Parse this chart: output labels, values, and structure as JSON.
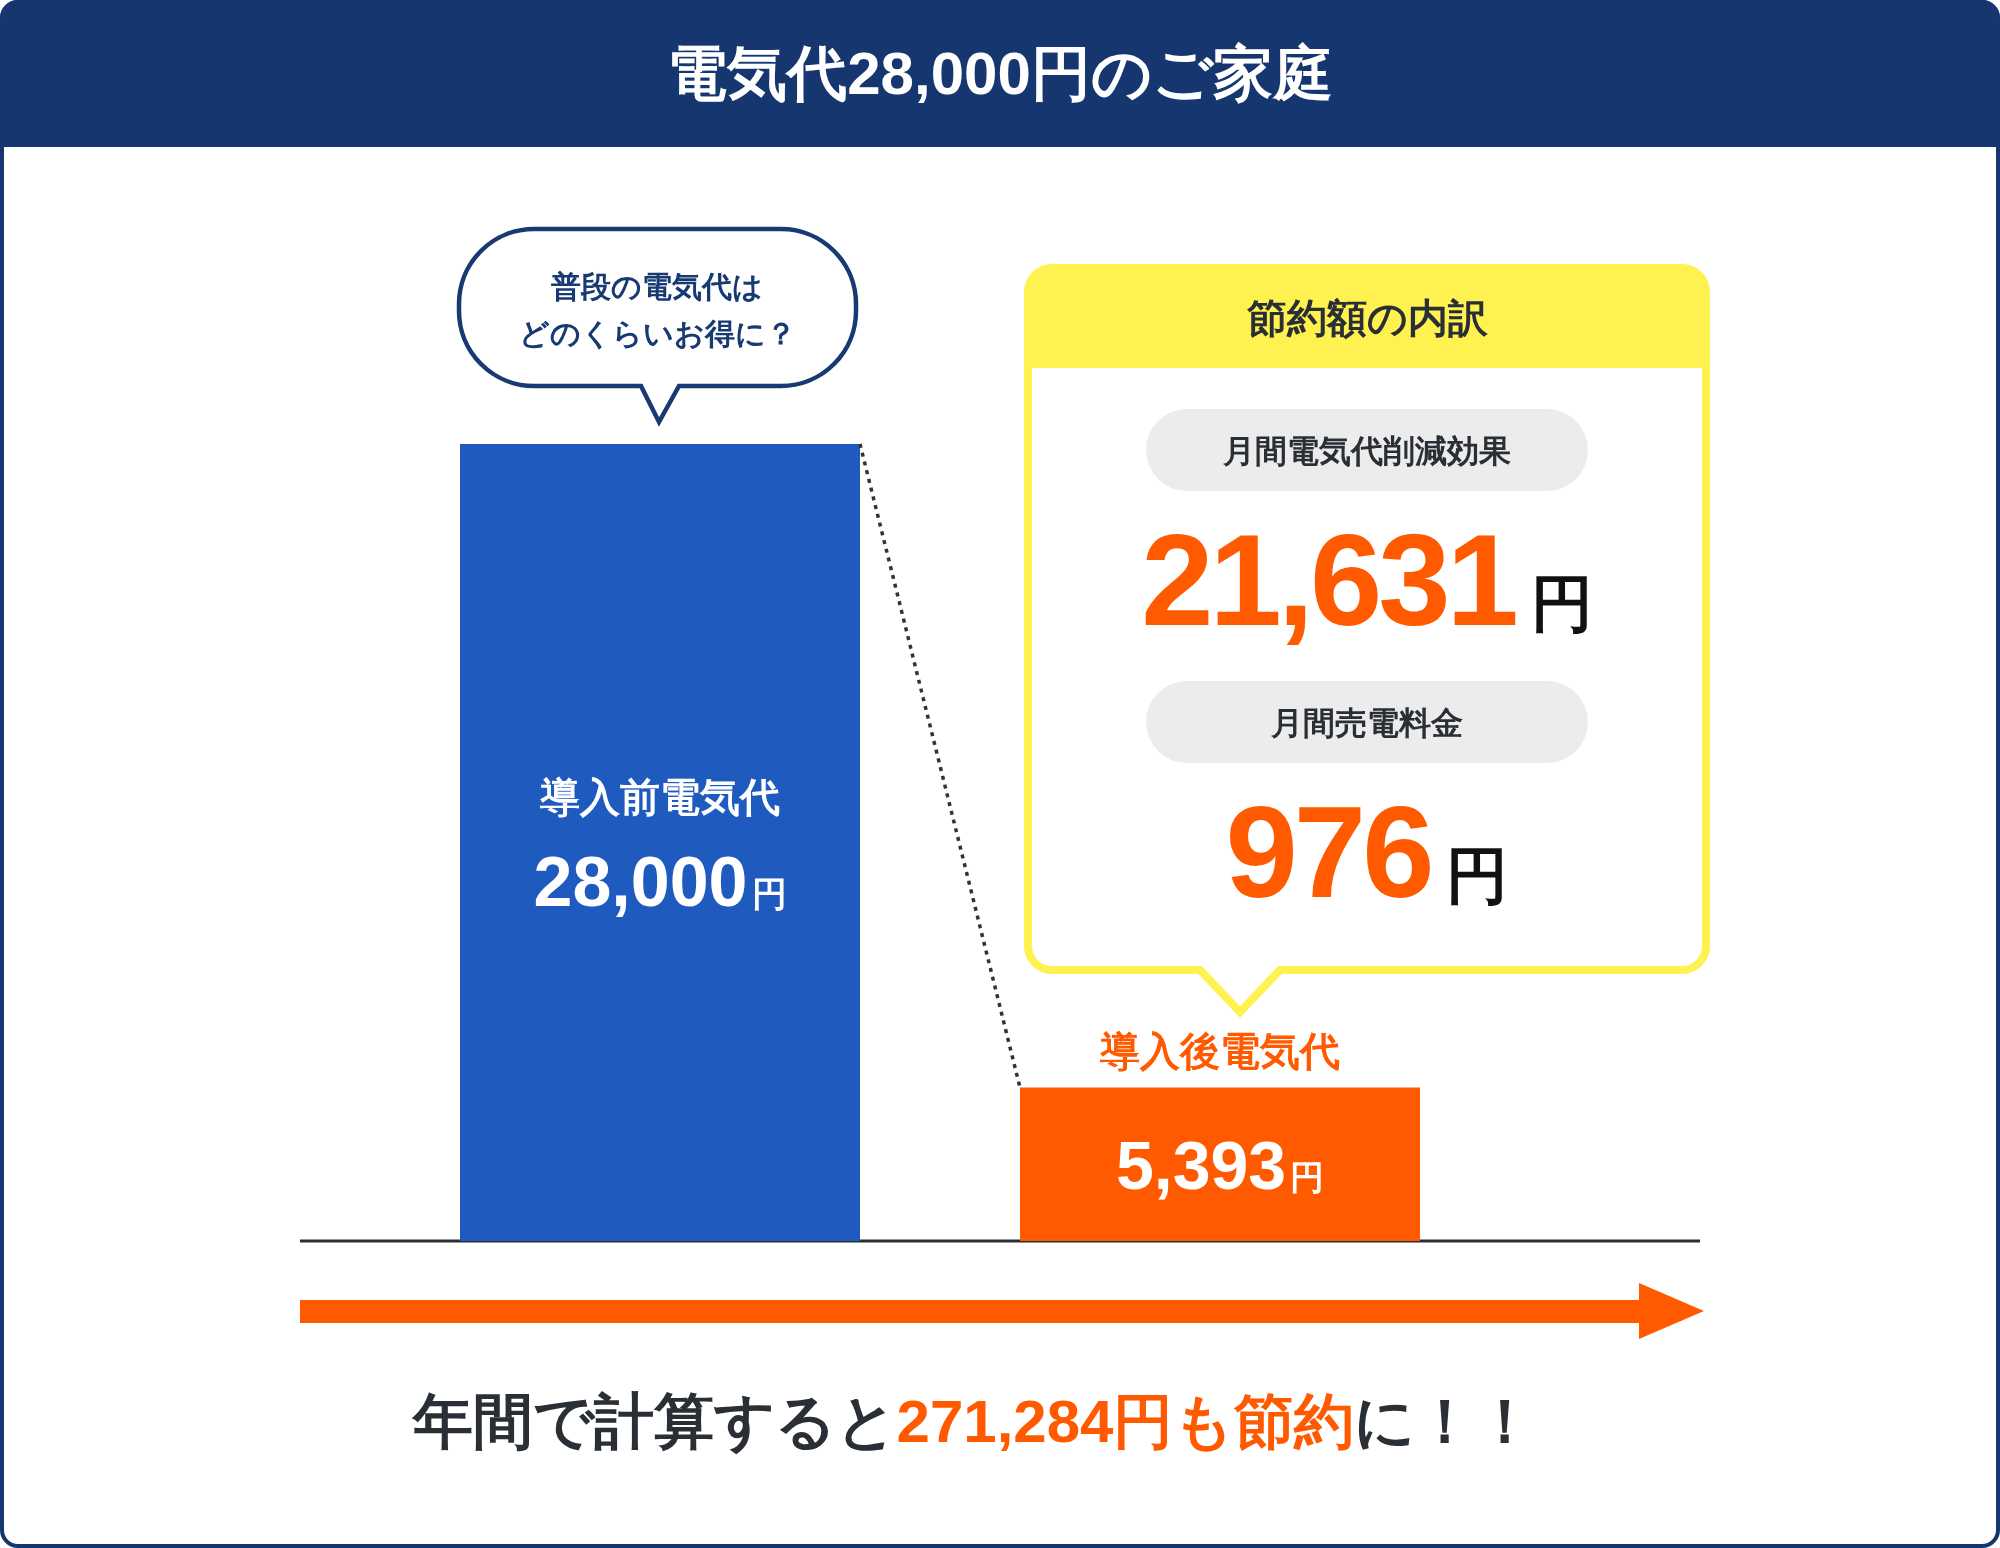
{
  "chart_data": {
    "type": "bar",
    "title": "電気代28,000円のご家庭",
    "categories": [
      "導入前電気代",
      "導入後電気代"
    ],
    "values": [
      28000,
      5393
    ],
    "colors": [
      "#1f5bbf",
      "#ff5a00"
    ],
    "value_labels": [
      "28,000円",
      "5,393円"
    ],
    "annotations": [
      "普段の電気代は",
      "どのくらいお得に？",
      "節約額の内訳",
      "月間電気代削減効果",
      "21,631円",
      "月間売電料金",
      "976円",
      "年間で計算すると",
      "271,284円も節約",
      "に！！"
    ]
  }
}
